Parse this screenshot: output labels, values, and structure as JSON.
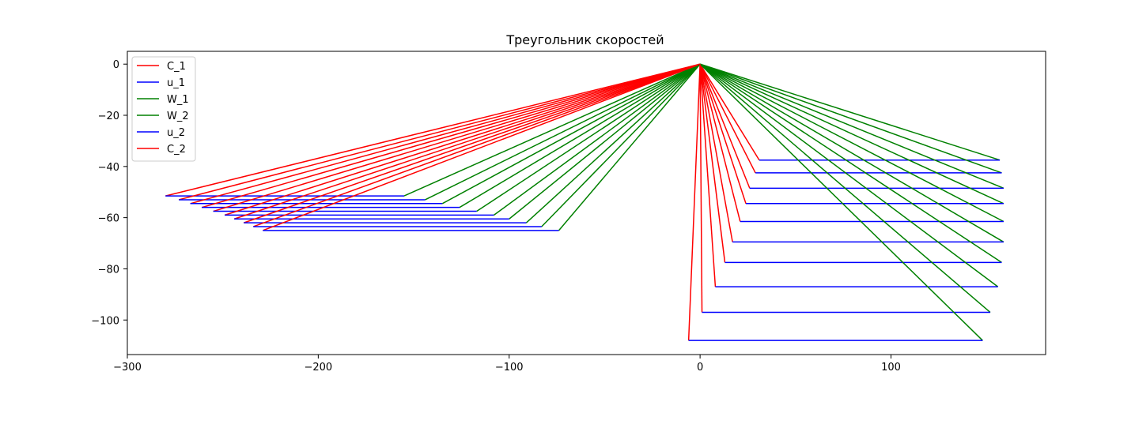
{
  "chart_data": {
    "type": "line",
    "title": "Треугольник скоростей",
    "xlabel": "",
    "ylabel": "",
    "xlim": [
      -300,
      181
    ],
    "ylim": [
      -113.5,
      5
    ],
    "xticks": [
      -300,
      -200,
      -100,
      0,
      100
    ],
    "xtick_labels": [
      "−300",
      "−200",
      "−100",
      "0",
      "100"
    ],
    "yticks": [
      0,
      -20,
      -40,
      -60,
      -80,
      -100
    ],
    "ytick_labels": [
      "0",
      "−20",
      "−40",
      "−60",
      "−80",
      "−100"
    ],
    "grid": false,
    "legend_position": "upper left",
    "legend": [
      {
        "label": "C_1",
        "color": "#ff0000"
      },
      {
        "label": "u_1",
        "color": "#0000ff"
      },
      {
        "label": "W_1",
        "color": "#008000"
      },
      {
        "label": "W_2",
        "color": "#008000"
      },
      {
        "label": "u_2",
        "color": "#0000ff"
      },
      {
        "label": "C_2",
        "color": "#ff0000"
      }
    ],
    "colors": {
      "C": "#ff0000",
      "u": "#0000ff",
      "W": "#008000"
    },
    "inlet_triangles": [
      {
        "c1_end": [
          -280,
          -51.5
        ],
        "w1_end": [
          -155,
          -51.5
        ]
      },
      {
        "c1_end": [
          -273,
          -53.0
        ],
        "w1_end": [
          -144,
          -53.0
        ]
      },
      {
        "c1_end": [
          -267,
          -54.5
        ],
        "w1_end": [
          -135,
          -54.5
        ]
      },
      {
        "c1_end": [
          -261,
          -56.0
        ],
        "w1_end": [
          -126,
          -56.0
        ]
      },
      {
        "c1_end": [
          -255,
          -57.5
        ],
        "w1_end": [
          -117,
          -57.5
        ]
      },
      {
        "c1_end": [
          -249,
          -59.0
        ],
        "w1_end": [
          -108,
          -59.0
        ]
      },
      {
        "c1_end": [
          -244,
          -60.5
        ],
        "w1_end": [
          -100,
          -60.5
        ]
      },
      {
        "c1_end": [
          -239,
          -62.0
        ],
        "w1_end": [
          -91,
          -62.0
        ]
      },
      {
        "c1_end": [
          -234,
          -63.5
        ],
        "w1_end": [
          -83,
          -63.5
        ]
      },
      {
        "c1_end": [
          -229,
          -65.0
        ],
        "w1_end": [
          -74,
          -65.0
        ]
      }
    ],
    "outlet_triangles": [
      {
        "c2_end": [
          31,
          -37.5
        ],
        "w2_end": [
          157,
          -37.5
        ]
      },
      {
        "c2_end": [
          29,
          -42.5
        ],
        "w2_end": [
          158,
          -42.5
        ]
      },
      {
        "c2_end": [
          26,
          -48.5
        ],
        "w2_end": [
          159,
          -48.5
        ]
      },
      {
        "c2_end": [
          24,
          -54.5
        ],
        "w2_end": [
          159,
          -54.5
        ]
      },
      {
        "c2_end": [
          21,
          -61.5
        ],
        "w2_end": [
          159,
          -61.5
        ]
      },
      {
        "c2_end": [
          17,
          -69.5
        ],
        "w2_end": [
          159,
          -69.5
        ]
      },
      {
        "c2_end": [
          13,
          -77.5
        ],
        "w2_end": [
          158,
          -77.5
        ]
      },
      {
        "c2_end": [
          8,
          -87.0
        ],
        "w2_end": [
          156,
          -87.0
        ]
      },
      {
        "c2_end": [
          1,
          -97.0
        ],
        "w2_end": [
          152,
          -97.0
        ]
      },
      {
        "c2_end": [
          -6,
          -108.0
        ],
        "w2_end": [
          148,
          -108.0
        ]
      }
    ]
  }
}
